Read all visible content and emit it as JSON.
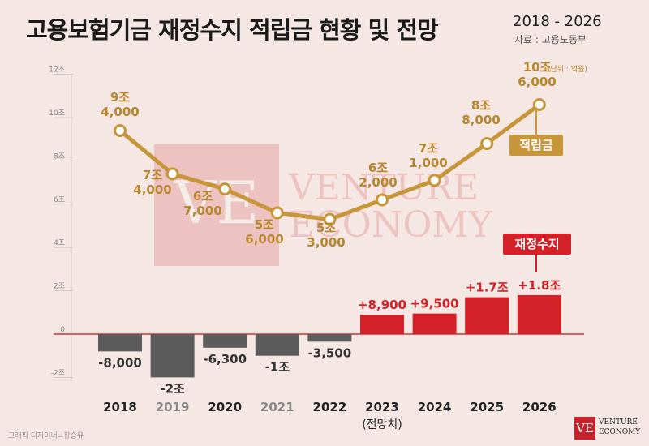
{
  "header": {
    "title": "고용보험기금 재정수지 적립금 현황 및 전망",
    "years": "2018 - 2026",
    "source": "자료 : 고용노동부"
  },
  "unit_label": "(단위 : 억원)",
  "credit": "그래픽 디자이너=장승유",
  "logo": {
    "mark": "VE",
    "line1": "VENTURE",
    "line2": "ECONOMY"
  },
  "watermark": {
    "mark": "VE",
    "line1": "VENTURE",
    "line2": "ECONOMY"
  },
  "series_tags": {
    "reserve": "적립금",
    "balance": "재정수지"
  },
  "colors": {
    "gold": "#c8963a",
    "red": "#d42127",
    "gray": "#5c5c5c",
    "gold_text": "#b8862c"
  },
  "chart_data": {
    "type": "bar+line",
    "categories": [
      "2018",
      "2019",
      "2020",
      "2021",
      "2022",
      "2023",
      "2024",
      "2025",
      "2026"
    ],
    "category_sublabels": [
      "",
      "",
      "",
      "",
      "",
      "(전망치)",
      "",
      "",
      ""
    ],
    "yticks": [
      "12조",
      "10조",
      "8조",
      "6조",
      "4조",
      "2조",
      "0",
      "-2조"
    ],
    "ylim": [
      -2.5,
      12
    ],
    "series": [
      {
        "name": "적립금",
        "kind": "line",
        "values": [
          9.4,
          7.4,
          6.7,
          5.6,
          5.3,
          6.2,
          7.1,
          8.8,
          10.6
        ],
        "labels": [
          [
            "9조",
            "4,000"
          ],
          [
            "7조",
            "4,000"
          ],
          [
            "6조",
            "7,000"
          ],
          [
            "5조",
            "6,000"
          ],
          [
            "5조",
            "3,000"
          ],
          [
            "6조",
            "2,000"
          ],
          [
            "7조",
            "1,000"
          ],
          [
            "8조",
            "8,000"
          ],
          [
            "10조",
            "6,000"
          ]
        ]
      },
      {
        "name": "재정수지",
        "kind": "bar",
        "values": [
          -0.8,
          -2.0,
          -0.63,
          -1.0,
          -0.35,
          0.89,
          0.95,
          1.7,
          1.8
        ],
        "labels": [
          "-8,000",
          "-2조",
          "-6,300",
          "-1조",
          "-3,500",
          "+8,900",
          "+9,500",
          "+1.7조",
          "+1.8조"
        ]
      }
    ]
  }
}
